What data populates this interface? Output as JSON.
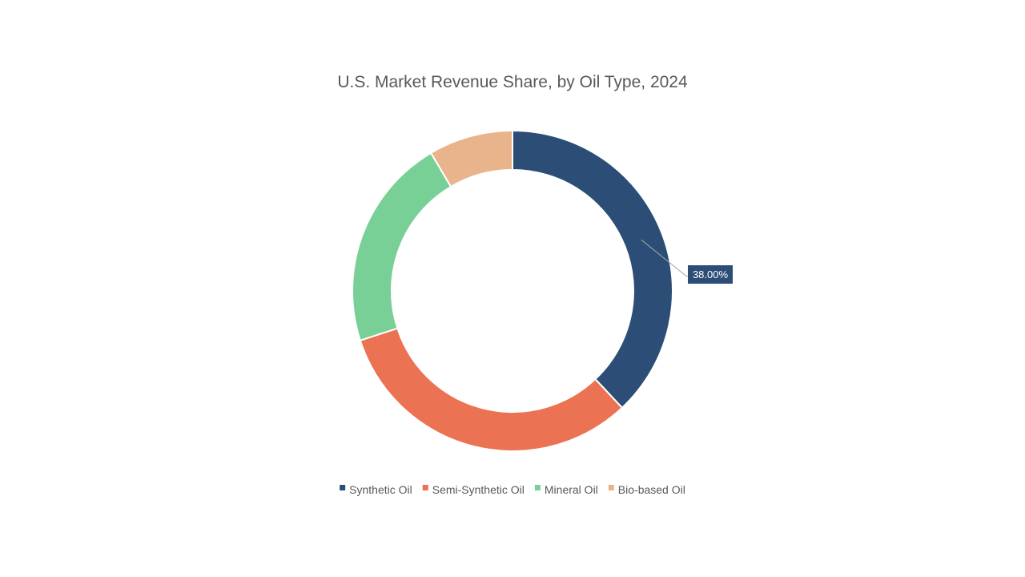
{
  "chart_data": {
    "type": "pie",
    "variant": "donut",
    "title": "U.S. Market Revenue Share, by Oil Type, 2024",
    "categories": [
      "Synthetic Oil",
      "Semi-Synthetic Oil",
      "Mineral Oil",
      "Bio-based Oil"
    ],
    "values": [
      38.0,
      32.0,
      21.5,
      8.5
    ],
    "colors": [
      "#2C4D75",
      "#EB7353",
      "#78D097",
      "#E9B48B"
    ],
    "data_labels": [
      {
        "category": "Synthetic Oil",
        "text": "38.00%"
      }
    ],
    "legend": {
      "position": "bottom",
      "entries": [
        "Synthetic Oil",
        "Semi-Synthetic Oil",
        "Mineral Oil",
        "Bio-based Oil"
      ]
    }
  }
}
